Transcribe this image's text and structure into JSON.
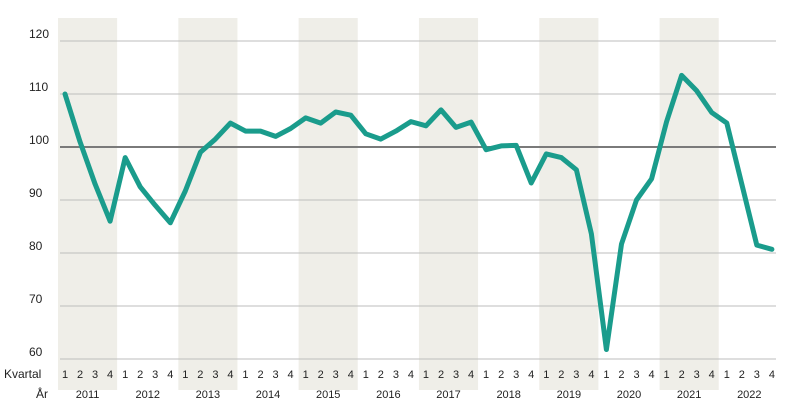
{
  "chart_data": {
    "type": "line",
    "title": "",
    "xlabel": "",
    "ylabel": "",
    "row_labels": {
      "quarter": "Kvartal",
      "year": "År"
    },
    "ylim": [
      60,
      120
    ],
    "yticks": [
      "60",
      "70",
      "80",
      "90",
      "100",
      "110",
      "120"
    ],
    "reference_line": 100,
    "grid": true,
    "colors": {
      "line": "#1a9c8c",
      "band": "#efeee8",
      "grid": "#bdbdbd",
      "reference": "#7a7a7a"
    },
    "years": [
      "2011",
      "2012",
      "2013",
      "2014",
      "2015",
      "2016",
      "2017",
      "2018",
      "2019",
      "2020",
      "2021",
      "2022"
    ],
    "shaded_years": [
      "2011",
      "2013",
      "2015",
      "2017",
      "2019",
      "2021"
    ],
    "quarters": [
      "1",
      "2",
      "3",
      "4"
    ],
    "series": [
      {
        "values": [
          110.0,
          101.0,
          93.0,
          86.0,
          98.0,
          92.5,
          89.0,
          85.7,
          91.7,
          99.0,
          101.5,
          104.5,
          103.0,
          103.0,
          102.0,
          103.5,
          105.5,
          104.5,
          106.6,
          106.0,
          102.5,
          101.5,
          103.0,
          104.8,
          104.0,
          107.0,
          103.7,
          104.7,
          99.5,
          100.2,
          100.3,
          93.2,
          98.7,
          98.0,
          95.7,
          83.6,
          61.8,
          81.7,
          90.0,
          94.0,
          104.8,
          113.5,
          110.6,
          106.5,
          104.5,
          93.0,
          81.5,
          80.7
        ]
      }
    ]
  }
}
